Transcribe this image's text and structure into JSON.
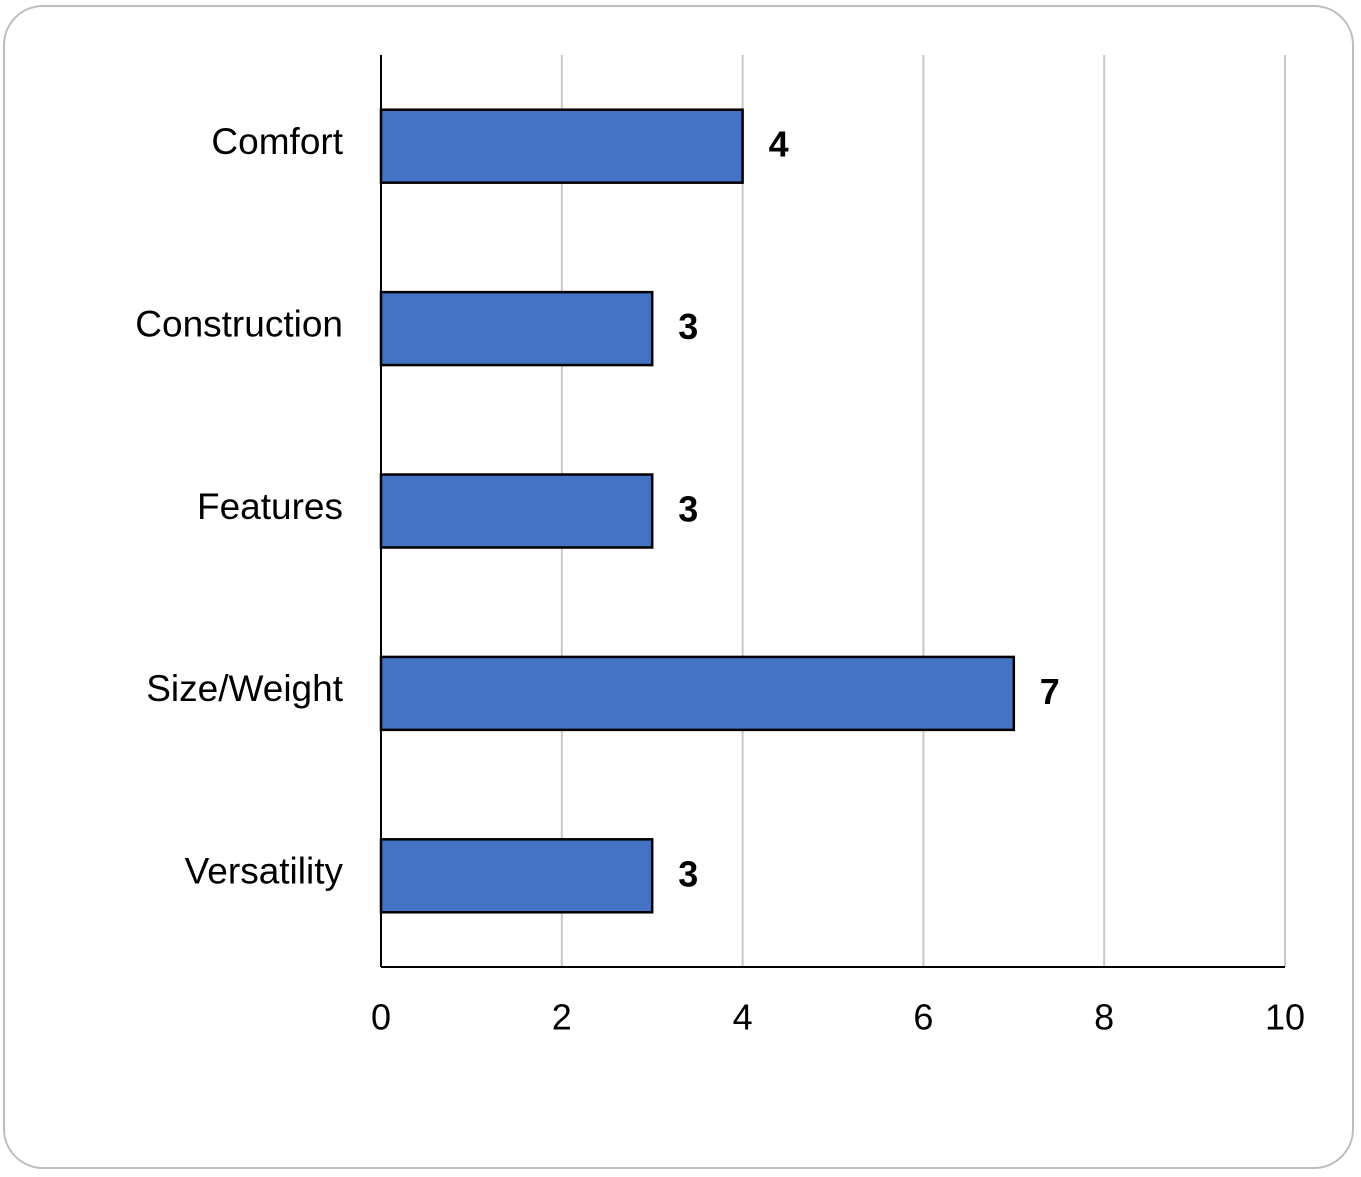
{
  "chart_data": {
    "type": "bar",
    "orientation": "horizontal",
    "categories": [
      "Comfort",
      "Construction",
      "Features",
      "Size/Weight",
      "Versatility"
    ],
    "values": [
      4,
      3,
      3,
      7,
      3
    ],
    "data_labels": [
      "4",
      "3",
      "3",
      "7",
      "3"
    ],
    "xlim": [
      0,
      10
    ],
    "x_ticks": [
      0,
      2,
      4,
      6,
      8,
      10
    ],
    "x_tick_labels": [
      "0",
      "2",
      "4",
      "6",
      "8",
      "10"
    ],
    "grid": "vertical",
    "legend": "none",
    "bar_color": "#4472C4",
    "bar_edge_color": "#000000",
    "title": "",
    "xlabel": "",
    "ylabel": ""
  }
}
